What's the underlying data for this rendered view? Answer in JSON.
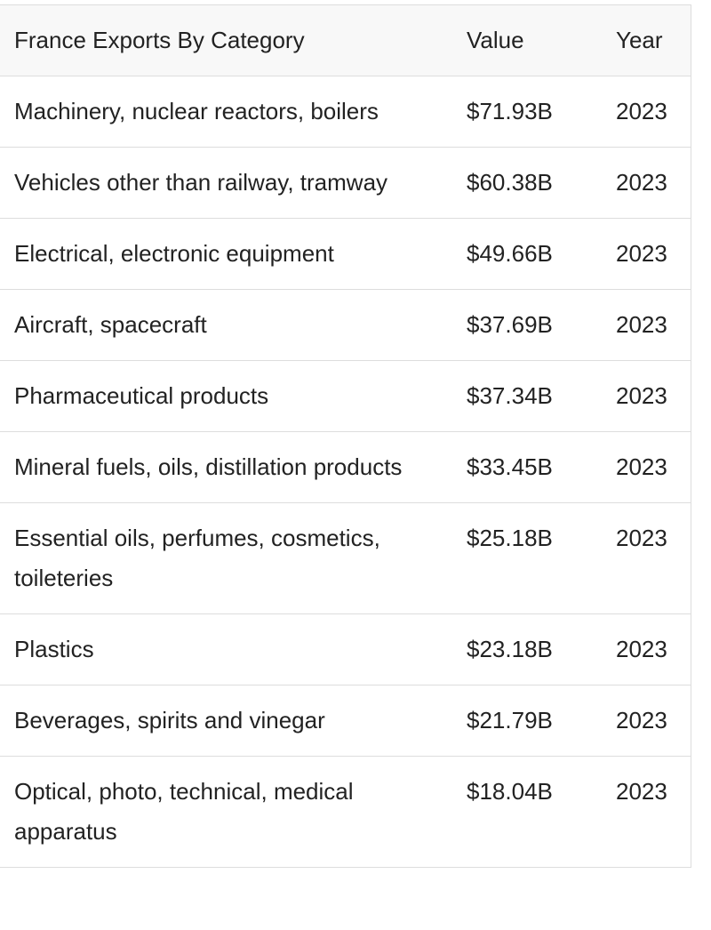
{
  "table": {
    "header": [
      "France Exports By Category",
      "Value",
      "Year"
    ],
    "rows": [
      [
        "Machinery, nuclear reactors, boilers",
        "$71.93B",
        "2023"
      ],
      [
        "Vehicles other than railway, tramway",
        "$60.38B",
        "2023"
      ],
      [
        "Electrical, electronic equipment",
        "$49.66B",
        "2023"
      ],
      [
        "Aircraft, spacecraft",
        "$37.69B",
        "2023"
      ],
      [
        "Pharmaceutical products",
        "$37.34B",
        "2023"
      ],
      [
        "Mineral fuels, oils, distillation products",
        "$33.45B",
        "2023"
      ],
      [
        "Essential oils, perfumes, cosmetics, toileteries",
        "$25.18B",
        "2023"
      ],
      [
        "Plastics",
        "$23.18B",
        "2023"
      ],
      [
        "Beverages, spirits and vinegar",
        "$21.79B",
        "2023"
      ],
      [
        "Optical, photo, technical, medical apparatus",
        "$18.04B",
        "2023"
      ]
    ]
  }
}
